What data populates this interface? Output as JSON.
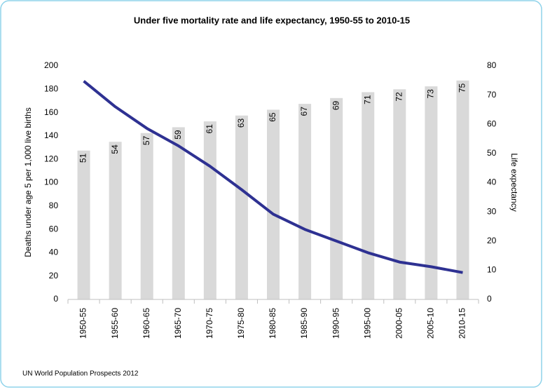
{
  "chart_data": {
    "type": "combo",
    "title": "Under five mortality rate and life expectancy, 1950-55 to 2010-15",
    "y_label": "Deaths under age 5 per 1,000 live births",
    "y2_label": "Life expectancy",
    "source": "UN World Population Prospects 2012",
    "categories": [
      "1950-55",
      "1955-60",
      "1960-65",
      "1965-70",
      "1970-75",
      "1975-80",
      "1980-85",
      "1985-90",
      "1990-95",
      "1995-00",
      "2000-05",
      "2005-10",
      "2010-15"
    ],
    "series": [
      {
        "type": "bar",
        "axis": "y2",
        "color": "#d9d9d9",
        "values": [
          51,
          54,
          57,
          59,
          61,
          63,
          65,
          67,
          69,
          71,
          72,
          73,
          75
        ]
      },
      {
        "type": "line",
        "color": "#2e3192",
        "values": [
          187,
          165,
          146.5,
          131.5,
          114,
          94,
          73,
          60,
          50,
          40,
          32,
          28,
          23
        ]
      }
    ],
    "ylim": [
      0,
      200
    ],
    "yticks": [
      0,
      20,
      40,
      60,
      80,
      100,
      120,
      140,
      160,
      180,
      200
    ],
    "y2lim": [
      0,
      80
    ],
    "y2ticks": [
      0,
      10,
      20,
      30,
      40,
      50,
      60,
      70,
      80
    ],
    "grid": false
  }
}
